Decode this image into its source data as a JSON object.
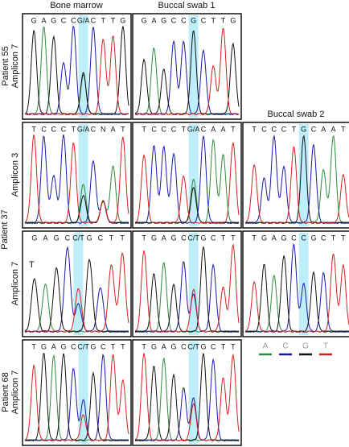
{
  "column_headers": [
    "Bone marrow",
    "Buccal swab 1",
    "Buccal swab 2"
  ],
  "row_labels": [
    "Patient 55",
    "Amplicon 7",
    "Amplicon 3",
    "Patient 37",
    "Amplicon 7",
    "Patient 68",
    "Amplicon 7"
  ],
  "legend": [
    {
      "base": "A",
      "color": "#2e8b3a"
    },
    {
      "base": "C",
      "color": "#1a1aa8"
    },
    {
      "base": "G",
      "color": "#111111"
    },
    {
      "base": "T",
      "color": "#d42020"
    }
  ],
  "panels": [
    {
      "bases": [
        "G",
        "A",
        "G",
        "C",
        "C",
        "G/A",
        "C",
        "T",
        "T",
        "G"
      ],
      "highlight": 5
    },
    {
      "bases": [
        "G",
        "A",
        "G",
        "C",
        "C",
        "G",
        "C",
        "T",
        "T",
        "G"
      ],
      "highlight": 5
    },
    {
      "bases": [
        "T",
        "C",
        "C",
        "C",
        "T",
        "G/A",
        "C",
        "N",
        "A",
        "T"
      ],
      "highlight": 5
    },
    {
      "bases": [
        "T",
        "C",
        "C",
        "C",
        "T",
        "G/A",
        "C",
        "A",
        "A",
        "T"
      ],
      "highlight": 5
    },
    {
      "bases": [
        "T",
        "C",
        "C",
        "C",
        "T",
        "G",
        "C",
        "A",
        "A",
        "T"
      ],
      "highlight": 5
    },
    {
      "bases": [
        "G",
        "A",
        "G",
        "C",
        "C/T",
        "G",
        "C",
        "T",
        "T"
      ],
      "highlight": 4,
      "annotation": "T"
    },
    {
      "bases": [
        "T",
        "G",
        "A",
        "G",
        "C",
        "C/T",
        "G",
        "C",
        "T",
        "T"
      ],
      "highlight": 5
    },
    {
      "bases": [
        "T",
        "G",
        "A",
        "G",
        "C",
        "C",
        "G",
        "C",
        "T",
        "T"
      ],
      "highlight": 5
    },
    {
      "bases": [
        "T",
        "G",
        "A",
        "G",
        "C",
        "C/T",
        "G",
        "C",
        "T",
        "T"
      ],
      "highlight": 5
    },
    {
      "bases": [
        "T",
        "G",
        "A",
        "G",
        "C",
        "C/T",
        "G",
        "C",
        "T",
        "T"
      ],
      "highlight": 5
    }
  ]
}
